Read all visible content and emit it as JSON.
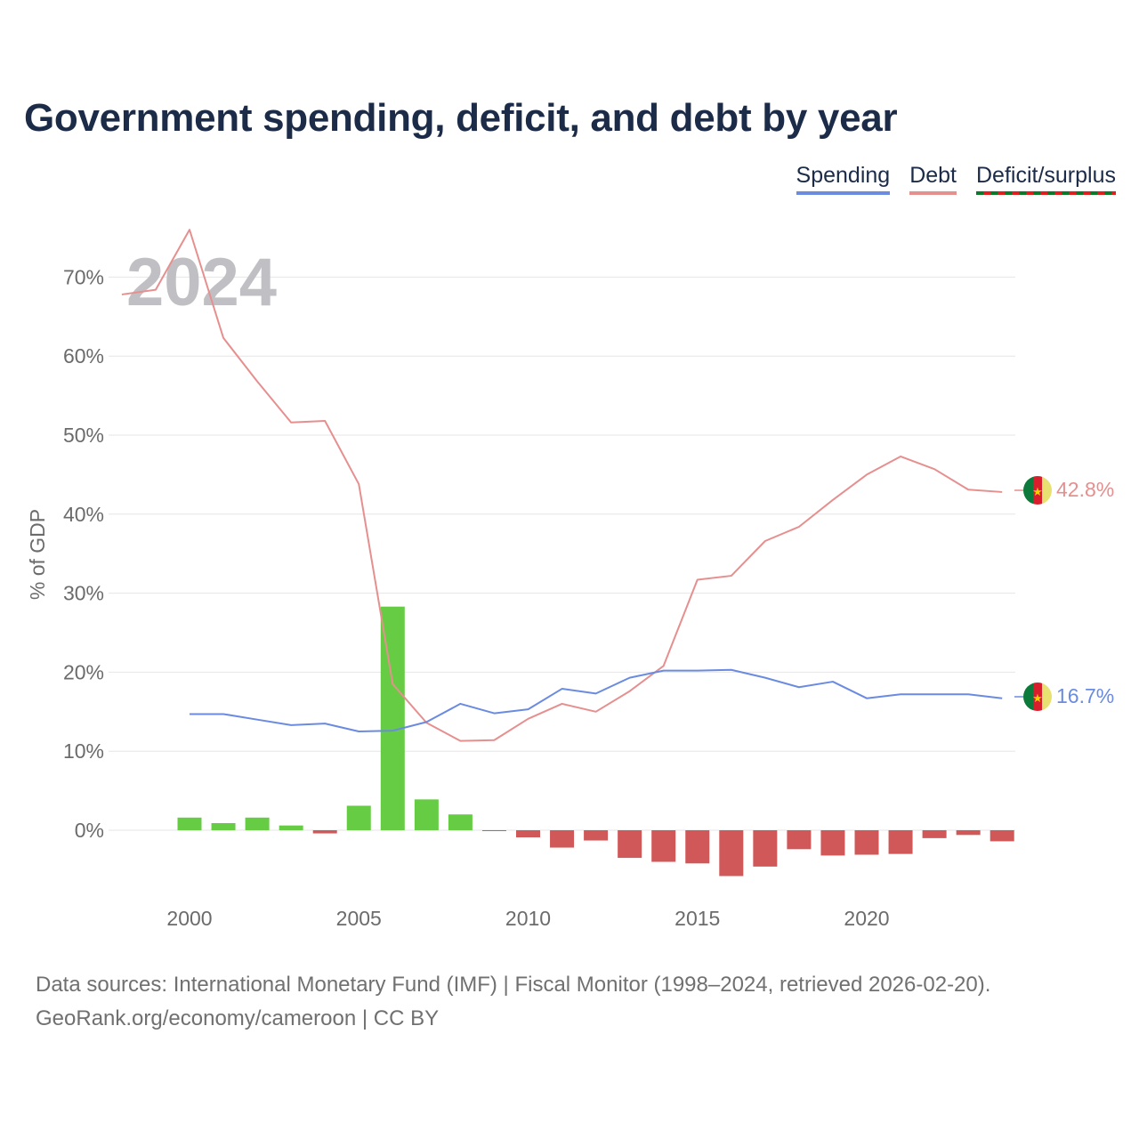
{
  "title": "Government spending, deficit, and debt by year",
  "legend": {
    "spending": "Spending",
    "debt": "Debt",
    "deficit": "Deficit/surplus"
  },
  "colors": {
    "spending": "#6a8be0",
    "debt": "#e68f8f",
    "surplus_bar": "#66cc44",
    "deficit_bar": "#d05858",
    "grid": "#e6e6e6",
    "axis_text": "#6b6b6b",
    "year_watermark": "#c0c0c4"
  },
  "year_watermark": "2024",
  "end_labels": {
    "debt": "42.8%",
    "spending": "16.7%"
  },
  "source": {
    "line1": "Data sources: International Monetary Fund (IMF) | Fiscal Monitor (1998–2024, retrieved 2026-02-20).",
    "line2": "GeoRank.org/economy/cameroon | CC BY"
  },
  "chart_data": {
    "type": "bar+line",
    "ylabel": "% of GDP",
    "xlabel": "",
    "ylim": [
      -8,
      75
    ],
    "xlim": [
      1997.5,
      2024.5
    ],
    "y_ticks": [
      0,
      10,
      20,
      30,
      40,
      50,
      60,
      70
    ],
    "y_tick_labels": [
      "0%",
      "10%",
      "20%",
      "30%",
      "40%",
      "50%",
      "60%",
      "70%"
    ],
    "x_ticks": [
      2000,
      2005,
      2010,
      2015,
      2020
    ],
    "x_tick_labels": [
      "2000",
      "2005",
      "2010",
      "2015",
      "2020"
    ],
    "grid": true,
    "legend_position": "top-right",
    "series": [
      {
        "name": "Debt",
        "type": "line",
        "x": [
          1998,
          1999,
          2000,
          2001,
          2002,
          2003,
          2004,
          2005,
          2006,
          2007,
          2008,
          2009,
          2010,
          2011,
          2012,
          2013,
          2014,
          2015,
          2016,
          2017,
          2018,
          2019,
          2020,
          2021,
          2022,
          2023,
          2024
        ],
        "values": [
          67.8,
          68.4,
          76.0,
          62.3,
          56.8,
          51.6,
          51.8,
          43.8,
          18.5,
          13.6,
          11.3,
          11.4,
          14.1,
          16.0,
          15.0,
          17.6,
          20.8,
          31.7,
          32.2,
          36.6,
          38.4,
          41.8,
          45.0,
          47.3,
          45.7,
          43.1,
          42.8
        ]
      },
      {
        "name": "Spending",
        "type": "line",
        "x": [
          2000,
          2001,
          2002,
          2003,
          2004,
          2005,
          2006,
          2007,
          2008,
          2009,
          2010,
          2011,
          2012,
          2013,
          2014,
          2015,
          2016,
          2017,
          2018,
          2019,
          2020,
          2021,
          2022,
          2023,
          2024
        ],
        "values": [
          14.7,
          14.7,
          14.0,
          13.3,
          13.5,
          12.5,
          12.6,
          13.7,
          16.0,
          14.8,
          15.3,
          17.9,
          17.3,
          19.3,
          20.2,
          20.2,
          20.3,
          19.3,
          18.1,
          18.8,
          16.7,
          17.2,
          17.2,
          17.2,
          16.7
        ]
      },
      {
        "name": "Deficit/surplus",
        "type": "bar",
        "x": [
          2000,
          2001,
          2002,
          2003,
          2004,
          2005,
          2006,
          2007,
          2008,
          2009,
          2010,
          2011,
          2012,
          2013,
          2014,
          2015,
          2016,
          2017,
          2018,
          2019,
          2020,
          2021,
          2022,
          2023,
          2024
        ],
        "values": [
          1.6,
          0.9,
          1.6,
          0.6,
          -0.4,
          3.1,
          28.3,
          3.9,
          2.0,
          -0.1,
          -0.9,
          -2.2,
          -1.3,
          -3.5,
          -4.0,
          -4.2,
          -5.8,
          -4.6,
          -2.4,
          -3.2,
          -3.1,
          -3.0,
          -1.0,
          -0.6,
          -1.4
        ]
      }
    ]
  }
}
